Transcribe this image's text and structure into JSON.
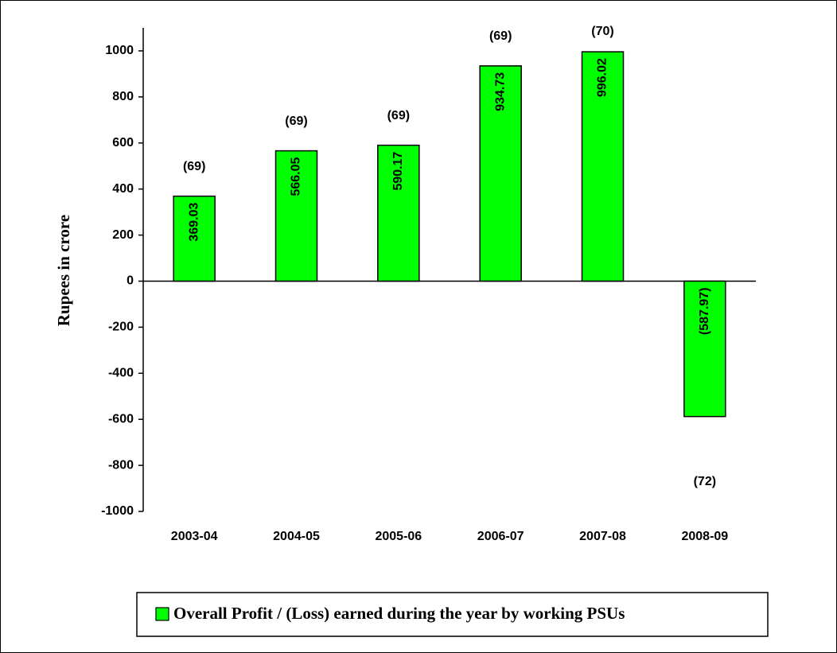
{
  "chart_data": {
    "type": "bar",
    "categories": [
      "2003-04",
      "2004-05",
      "2005-06",
      "2006-07",
      "2007-08",
      "2008-09"
    ],
    "series": [
      {
        "name": "Overall Profit / (Loss) earned during the year by working PSUs",
        "color": "#00ff00",
        "values": [
          369.03,
          566.05,
          590.17,
          934.73,
          996.02,
          -587.97
        ],
        "value_labels": [
          "369.03",
          "566.05",
          "590.17",
          "934.73",
          "996.02",
          "(587.97)"
        ]
      }
    ],
    "annotations": [
      "(69)",
      "(69)",
      "(69)",
      "(69)",
      "(70)",
      "(72)"
    ],
    "y_label": "Rupees in crore",
    "ylim": [
      -1000,
      1100
    ],
    "yticks": [
      -1000,
      -800,
      -600,
      -400,
      -200,
      0,
      200,
      400,
      600,
      800,
      1000
    ],
    "legend": "bottom"
  }
}
